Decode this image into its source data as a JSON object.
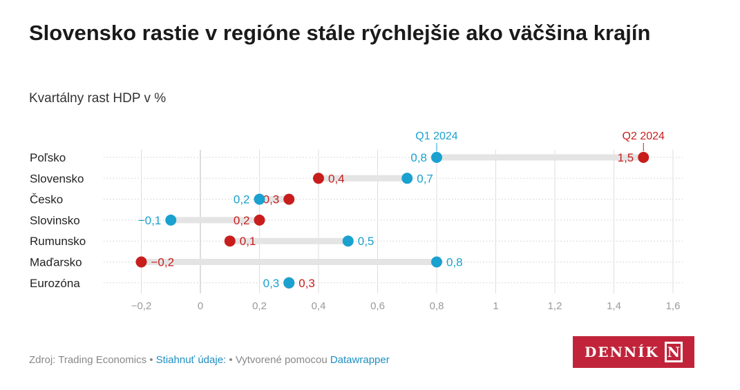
{
  "title": "Slovensko rastie v regióne stále rýchlejšie ako väčšina krajín",
  "subtitle": "Kvartálny rast HDP v %",
  "footer": {
    "source": "Zdroj: Trading Economics",
    "sep1": " • ",
    "download": "Stiahnuť údaje:",
    "sep2": " • ",
    "created": "Vytvorené pomocou ",
    "tool": "Datawrapper"
  },
  "logo": {
    "text": "DENNÍK",
    "mark": "N"
  },
  "colors": {
    "q1": "#1aa1cf",
    "q2": "#c71e1d",
    "range": "#e4e4e4",
    "logo": "#c1243a"
  },
  "chart_data": {
    "type": "dot-range",
    "series": [
      {
        "name": "Q1 2024",
        "color": "#1aa1cf",
        "values": [
          0.8,
          0.7,
          0.2,
          -0.1,
          0.5,
          0.8,
          0.3
        ]
      },
      {
        "name": "Q2 2024",
        "color": "#c71e1d",
        "values": [
          1.5,
          0.4,
          0.3,
          0.2,
          0.1,
          -0.2,
          0.3
        ]
      }
    ],
    "categories": [
      "Poľsko",
      "Slovensko",
      "Česko",
      "Slovinsko",
      "Rumunsko",
      "Maďarsko",
      "Eurozóna"
    ],
    "xlim": [
      -0.33,
      1.63
    ],
    "xticks": [
      -0.2,
      0,
      0.2,
      0.4,
      0.6,
      0.8,
      1,
      1.2,
      1.4,
      1.6
    ],
    "xtick_labels": [
      "−0,2",
      "0",
      "0,2",
      "0,4",
      "0,6",
      "0,8",
      "1",
      "1,2",
      "1,4",
      "1,6"
    ],
    "grid": "vertical",
    "legend": "inline-top"
  }
}
